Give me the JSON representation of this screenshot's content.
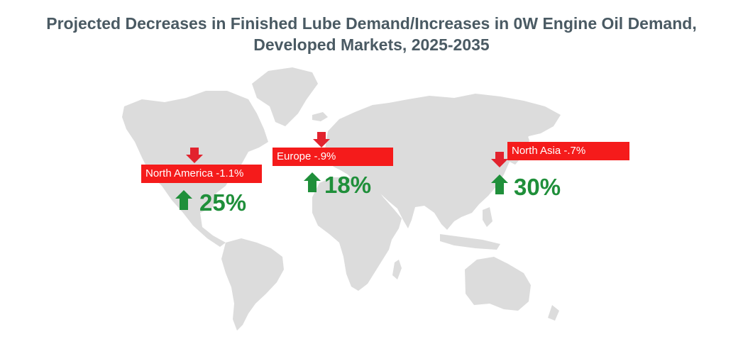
{
  "colors": {
    "land": "#dcdcdc",
    "label_bg": "#f51b1b",
    "down_arrow": "#e2232e",
    "up_arrow": "#1f8f3a",
    "title": "#4a5a63"
  },
  "icons": {
    "decrease": "arrow-down-icon",
    "increase": "arrow-up-icon"
  },
  "chart_data": {
    "type": "map",
    "title": "Projected Decreases in Finished Lube Demand/Increases in 0W Engine Oil Demand,",
    "subtitle": "Developed Markets, 2025-2035",
    "regions": [
      {
        "name": "North America",
        "label": "North America -1.1%",
        "lube_demand_change_pct": -1.1,
        "increase_label": "25%",
        "zero_w_demand_change_pct": 25
      },
      {
        "name": "Europe",
        "label": "Europe -.9%",
        "lube_demand_change_pct": -0.9,
        "increase_label": "18%",
        "zero_w_demand_change_pct": 18
      },
      {
        "name": "North Asia",
        "label": "North Asia -.7%",
        "lube_demand_change_pct": -0.7,
        "increase_label": "30%",
        "zero_w_demand_change_pct": 30
      }
    ]
  }
}
